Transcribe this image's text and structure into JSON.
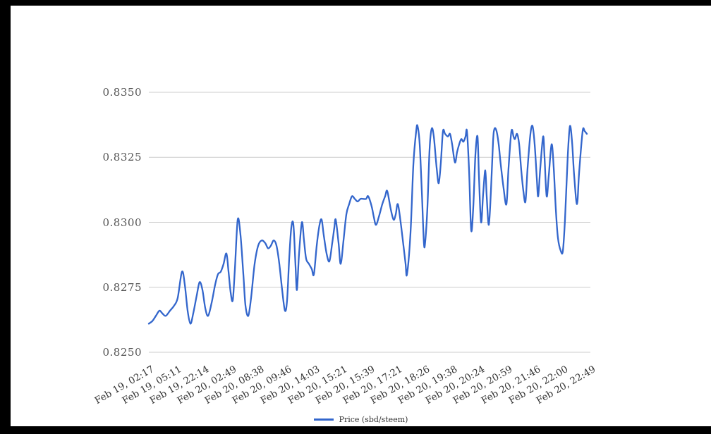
{
  "colors": {
    "series_line": "#3366cc",
    "gridline": "#cccccc",
    "axis_text": "#555555",
    "x_axis_text": "#333333",
    "frame_border": "#000000",
    "background": "#ffffff"
  },
  "legend": {
    "label": "Price (sbd/steem)"
  },
  "chart_data": {
    "type": "line",
    "title": "",
    "xlabel": "",
    "ylabel": "",
    "grid": true,
    "legend_position": "bottom",
    "ylim": [
      0.825,
      0.835
    ],
    "y_ticks": [
      0.825,
      0.8275,
      0.83,
      0.8325,
      0.835
    ],
    "y_tick_labels": [
      "0.8250",
      "0.8275",
      "0.8300",
      "0.8325",
      "0.8350"
    ],
    "x_tick_labels": [
      "Feb 19, 02:17",
      "Feb 19, 05:11",
      "Feb 19, 22:14",
      "Feb 20, 02:49",
      "Feb 20, 08:38",
      "Feb 20, 09:46",
      "Feb 20, 14:03",
      "Feb 20, 15:21",
      "Feb 20, 15:39",
      "Feb 20, 17:21",
      "Feb 20, 18:26",
      "Feb 20, 19:38",
      "Feb 20, 20:24",
      "Feb 20, 20:59",
      "Feb 20, 21:46",
      "Feb 20, 22:00",
      "Feb 20, 22:49"
    ],
    "series": [
      {
        "name": "Price (sbd/steem)",
        "color": "#3366cc",
        "points": [
          [
            196,
            0.8261
          ],
          [
            201,
            0.8262
          ],
          [
            206,
            0.8264
          ],
          [
            211,
            0.8266
          ],
          [
            215,
            0.8265
          ],
          [
            220,
            0.8264
          ],
          [
            226,
            0.8266
          ],
          [
            232,
            0.8268
          ],
          [
            237,
            0.8271
          ],
          [
            243,
            0.8281
          ],
          [
            247,
            0.8276
          ],
          [
            251,
            0.8266
          ],
          [
            255,
            0.8261
          ],
          [
            259,
            0.8265
          ],
          [
            264,
            0.8272
          ],
          [
            268,
            0.8277
          ],
          [
            272,
            0.8274
          ],
          [
            276,
            0.8267
          ],
          [
            280,
            0.8264
          ],
          [
            285,
            0.8269
          ],
          [
            290,
            0.8276
          ],
          [
            294,
            0.828
          ],
          [
            298,
            0.8281
          ],
          [
            302,
            0.8284
          ],
          [
            306,
            0.8288
          ],
          [
            309,
            0.8281
          ],
          [
            312,
            0.8273
          ],
          [
            315,
            0.827
          ],
          [
            318,
            0.8282
          ],
          [
            322,
            0.8301
          ],
          [
            326,
            0.8295
          ],
          [
            330,
            0.828
          ],
          [
            333,
            0.8268
          ],
          [
            337,
            0.8264
          ],
          [
            341,
            0.8271
          ],
          [
            346,
            0.8284
          ],
          [
            351,
            0.8291
          ],
          [
            356,
            0.8293
          ],
          [
            361,
            0.8292
          ],
          [
            365,
            0.829
          ],
          [
            369,
            0.8291
          ],
          [
            373,
            0.8293
          ],
          [
            377,
            0.8291
          ],
          [
            381,
            0.8284
          ],
          [
            385,
            0.8274
          ],
          [
            389,
            0.8266
          ],
          [
            392,
            0.827
          ],
          [
            395,
            0.8286
          ],
          [
            398,
            0.8298
          ],
          [
            401,
            0.8299
          ],
          [
            404,
            0.8283
          ],
          [
            406,
            0.8274
          ],
          [
            409,
            0.8288
          ],
          [
            413,
            0.83
          ],
          [
            416,
            0.8293
          ],
          [
            419,
            0.8286
          ],
          [
            423,
            0.8284
          ],
          [
            427,
            0.8282
          ],
          [
            430,
            0.828
          ],
          [
            434,
            0.8291
          ],
          [
            438,
            0.8299
          ],
          [
            441,
            0.8301
          ],
          [
            444,
            0.8295
          ],
          [
            448,
            0.8288
          ],
          [
            452,
            0.8285
          ],
          [
            456,
            0.8292
          ],
          [
            459,
            0.8298
          ],
          [
            461,
            0.8301
          ],
          [
            465,
            0.8292
          ],
          [
            468,
            0.8284
          ],
          [
            472,
            0.8293
          ],
          [
            476,
            0.8303
          ],
          [
            480,
            0.8307
          ],
          [
            484,
            0.831
          ],
          [
            488,
            0.8309
          ],
          [
            492,
            0.8308
          ],
          [
            496,
            0.8309
          ],
          [
            500,
            0.8309
          ],
          [
            504,
            0.8309
          ],
          [
            507,
            0.831
          ],
          [
            512,
            0.8306
          ],
          [
            515,
            0.8302
          ],
          [
            518,
            0.8299
          ],
          [
            522,
            0.8302
          ],
          [
            527,
            0.8307
          ],
          [
            531,
            0.831
          ],
          [
            534,
            0.8312
          ],
          [
            539,
            0.8305
          ],
          [
            543,
            0.8301
          ],
          [
            546,
            0.8303
          ],
          [
            549,
            0.8307
          ],
          [
            553,
            0.83
          ],
          [
            557,
            0.8291
          ],
          [
            560,
            0.8284
          ],
          [
            562,
            0.828
          ],
          [
            567,
            0.8296
          ],
          [
            571,
            0.8322
          ],
          [
            575,
            0.8335
          ],
          [
            577,
            0.8337
          ],
          [
            580,
            0.833
          ],
          [
            583,
            0.8312
          ],
          [
            586,
            0.8292
          ],
          [
            588,
            0.8293
          ],
          [
            591,
            0.8306
          ],
          [
            594,
            0.8328
          ],
          [
            597,
            0.8336
          ],
          [
            600,
            0.8333
          ],
          [
            604,
            0.8321
          ],
          [
            607,
            0.8315
          ],
          [
            610,
            0.8323
          ],
          [
            613,
            0.8335
          ],
          [
            616,
            0.8334
          ],
          [
            620,
            0.8333
          ],
          [
            623,
            0.8334
          ],
          [
            626,
            0.833
          ],
          [
            630,
            0.8323
          ],
          [
            633,
            0.8327
          ],
          [
            636,
            0.833
          ],
          [
            639,
            0.8332
          ],
          [
            642,
            0.8331
          ],
          [
            645,
            0.8333
          ],
          [
            647,
            0.8335
          ],
          [
            650,
            0.832
          ],
          [
            653,
            0.8297
          ],
          [
            656,
            0.8306
          ],
          [
            659,
            0.8326
          ],
          [
            662,
            0.8333
          ],
          [
            664,
            0.8318
          ],
          [
            667,
            0.83
          ],
          [
            670,
            0.8311
          ],
          [
            673,
            0.832
          ],
          [
            675,
            0.831
          ],
          [
            678,
            0.8299
          ],
          [
            681,
            0.8312
          ],
          [
            684,
            0.8331
          ],
          [
            686,
            0.8336
          ],
          [
            689,
            0.8335
          ],
          [
            692,
            0.833
          ],
          [
            695,
            0.8322
          ],
          [
            699,
            0.8313
          ],
          [
            703,
            0.8307
          ],
          [
            706,
            0.8321
          ],
          [
            710,
            0.8335
          ],
          [
            713,
            0.8333
          ],
          [
            715,
            0.8332
          ],
          [
            718,
            0.8334
          ],
          [
            721,
            0.833
          ],
          [
            724,
            0.832
          ],
          [
            727,
            0.8312
          ],
          [
            730,
            0.8308
          ],
          [
            733,
            0.8321
          ],
          [
            737,
            0.8334
          ],
          [
            740,
            0.8337
          ],
          [
            743,
            0.833
          ],
          [
            746,
            0.8317
          ],
          [
            748,
            0.831
          ],
          [
            751,
            0.8321
          ],
          [
            755,
            0.8333
          ],
          [
            757,
            0.8325
          ],
          [
            760,
            0.831
          ],
          [
            763,
            0.8318
          ],
          [
            767,
            0.833
          ],
          [
            770,
            0.8321
          ],
          [
            773,
            0.8305
          ],
          [
            776,
            0.8294
          ],
          [
            780,
            0.8289
          ],
          [
            783,
            0.8289
          ],
          [
            786,
            0.8301
          ],
          [
            790,
            0.8326
          ],
          [
            793,
            0.8337
          ],
          [
            796,
            0.8331
          ],
          [
            799,
            0.8318
          ],
          [
            803,
            0.8307
          ],
          [
            806,
            0.8319
          ],
          [
            811,
            0.8335
          ],
          [
            814,
            0.8335
          ],
          [
            817,
            0.8334
          ]
        ]
      }
    ]
  }
}
